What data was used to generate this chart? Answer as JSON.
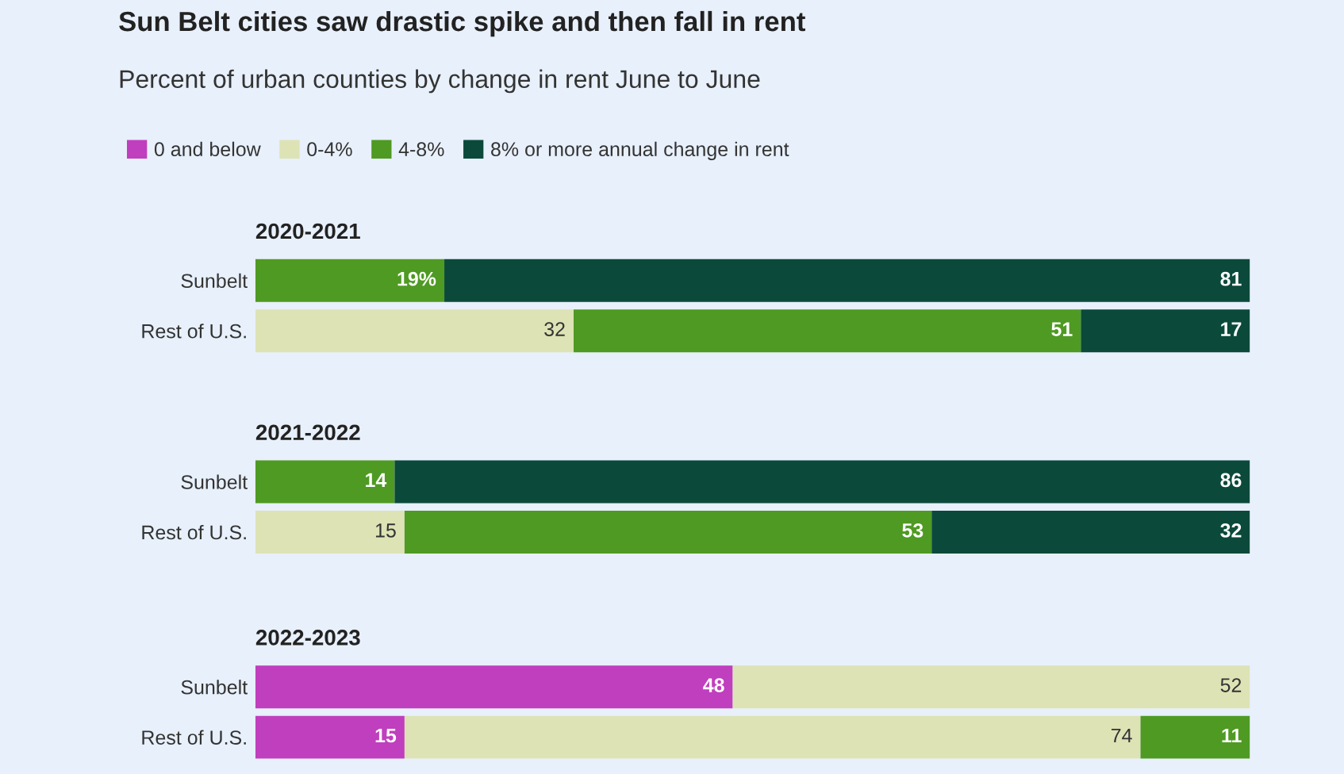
{
  "chart_data": [
    {
      "type": "other",
      "title": "Sun Belt cities saw drastic spike and then fall in rent",
      "subtitle": "Percent of urban counties by change in rent June to June"
    },
    {
      "type": "bar",
      "orientation": "horizontal",
      "stacked": true,
      "title": "2020-2021",
      "categories": [
        "Sunbelt",
        "Rest of U.S."
      ],
      "xlim": [
        0,
        100
      ],
      "tick_labels": "y",
      "legend": "top",
      "grid": false,
      "series": [
        {
          "name": "0 and below",
          "color": "#c03fbe",
          "values": [
            null,
            null
          ],
          "value_labels": [
            null,
            null
          ]
        },
        {
          "name": "0-4%",
          "color": "#dde3b5",
          "values": [
            null,
            32
          ],
          "value_labels": [
            null,
            "32"
          ]
        },
        {
          "name": "4-8%",
          "color": "#4f9a23",
          "values": [
            19,
            51
          ],
          "value_labels": [
            "19%",
            "51"
          ]
        },
        {
          "name": "8% or more annual change in rent",
          "color": "#0b4a3a",
          "values": [
            81,
            17
          ],
          "value_labels": [
            "81",
            "17"
          ]
        }
      ]
    },
    {
      "type": "bar",
      "orientation": "horizontal",
      "stacked": true,
      "title": "2021-2022",
      "categories": [
        "Sunbelt",
        "Rest of U.S."
      ],
      "xlim": [
        0,
        100
      ],
      "tick_labels": "y",
      "grid": false,
      "series": [
        {
          "color": "#c03fbe",
          "values": [
            null,
            null
          ],
          "value_labels": [
            null,
            null
          ]
        },
        {
          "color": "#dde3b5",
          "values": [
            null,
            15
          ],
          "value_labels": [
            null,
            "15"
          ]
        },
        {
          "color": "#4f9a23",
          "values": [
            14,
            53
          ],
          "value_labels": [
            "14",
            "53"
          ]
        },
        {
          "color": "#0b4a3a",
          "values": [
            86,
            32
          ],
          "value_labels": [
            "86",
            "32"
          ]
        }
      ]
    },
    {
      "type": "bar",
      "orientation": "horizontal",
      "stacked": true,
      "title": "2022-2023",
      "categories": [
        "Sunbelt",
        "Rest of U.S."
      ],
      "xlim": [
        0,
        100
      ],
      "tick_labels": "y",
      "grid": false,
      "series": [
        {
          "color": "#c03fbe",
          "values": [
            48,
            15
          ],
          "value_labels": [
            "48",
            "15"
          ]
        },
        {
          "color": "#dde3b5",
          "values": [
            52,
            74
          ],
          "value_labels": [
            "52",
            "74"
          ]
        },
        {
          "color": "#4f9a23",
          "values": [
            null,
            11
          ],
          "value_labels": [
            null,
            "11"
          ]
        },
        {
          "color": "#0b4a3a",
          "values": [
            null,
            null
          ],
          "value_labels": [
            null,
            null
          ]
        }
      ]
    }
  ]
}
